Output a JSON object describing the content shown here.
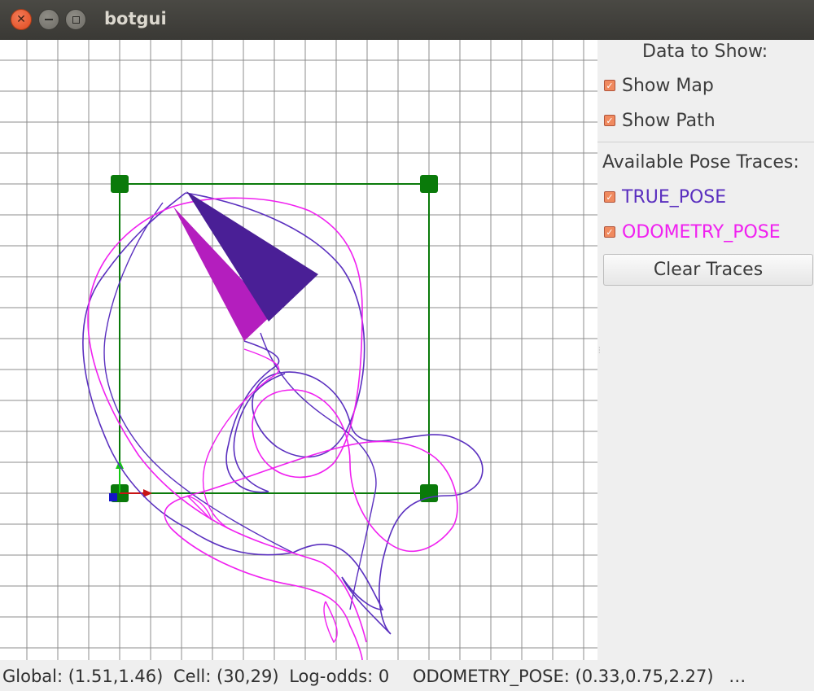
{
  "window": {
    "title": "botgui",
    "close_glyph": "✕",
    "min_glyph": "–",
    "max_glyph": "□"
  },
  "panel": {
    "data_heading": "Data to Show:",
    "show_map_label": "Show Map",
    "show_map_checked": true,
    "show_path_label": "Show Path",
    "show_path_checked": true,
    "traces_heading": "Available Pose Traces:",
    "traces": [
      {
        "label": "TRUE_POSE",
        "color": "#5a2fbf",
        "checked": true
      },
      {
        "label": "ODOMETRY_POSE",
        "color": "#f020f0",
        "checked": true
      }
    ],
    "clear_label": "Clear Traces"
  },
  "status": {
    "global": "Global: (1.51,1.46)",
    "cell": "Cell: (30,29)",
    "logodds": "Log-odds: 0",
    "pose": "ODOMETRY_POSE: (0.33,0.75,2.27)",
    "ellipsis": "…"
  },
  "colors": {
    "true_pose": "#4a1f96",
    "odometry_pose": "#c10ac7",
    "path": "#0a7a0a",
    "grid": "#8c8c8c",
    "accent_check": "#f08a5f"
  }
}
